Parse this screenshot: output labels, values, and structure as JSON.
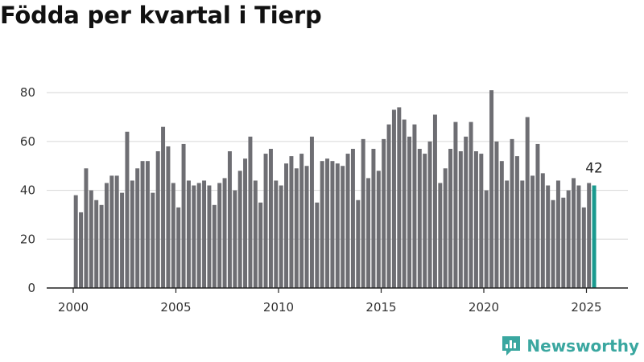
{
  "title": "Födda per kvartal i Tierp",
  "brand": {
    "name": "Newsworthy",
    "icon": "newsworthy-logo-icon",
    "color": "#3aa7a0"
  },
  "colors": {
    "bar": "#6e6e73",
    "highlight": "#1a9a8f",
    "grid": "#d6d6d6",
    "axis": "#222222"
  },
  "chart_data": {
    "type": "bar",
    "title": "Födda per kvartal i Tierp",
    "xlabel": "",
    "ylabel": "",
    "ylim": [
      0,
      85
    ],
    "yticks": [
      0,
      20,
      40,
      60,
      80
    ],
    "xlim": [
      2000,
      2025.75
    ],
    "xticks": [
      "2000",
      "2005",
      "2010",
      "2015",
      "2020",
      "2025"
    ],
    "grid": "horizontal",
    "start_year": 2000,
    "periods_per_year": 4,
    "values": [
      38,
      31,
      49,
      40,
      36,
      34,
      43,
      46,
      46,
      39,
      64,
      44,
      49,
      52,
      52,
      39,
      56,
      66,
      58,
      43,
      33,
      59,
      44,
      42,
      43,
      44,
      42,
      34,
      43,
      45,
      56,
      40,
      48,
      53,
      62,
      44,
      35,
      55,
      57,
      44,
      42,
      51,
      54,
      49,
      55,
      50,
      62,
      35,
      52,
      53,
      52,
      51,
      50,
      55,
      57,
      36,
      61,
      45,
      57,
      48,
      61,
      67,
      73,
      74,
      69,
      62,
      67,
      57,
      55,
      60,
      71,
      43,
      49,
      57,
      68,
      56,
      62,
      68,
      56,
      55,
      40,
      81,
      60,
      52,
      44,
      61,
      54,
      44,
      70,
      46,
      59,
      47,
      42,
      36,
      44,
      37,
      40,
      45,
      42,
      33,
      43,
      42
    ],
    "highlight": {
      "index": 101,
      "label": "42"
    }
  }
}
